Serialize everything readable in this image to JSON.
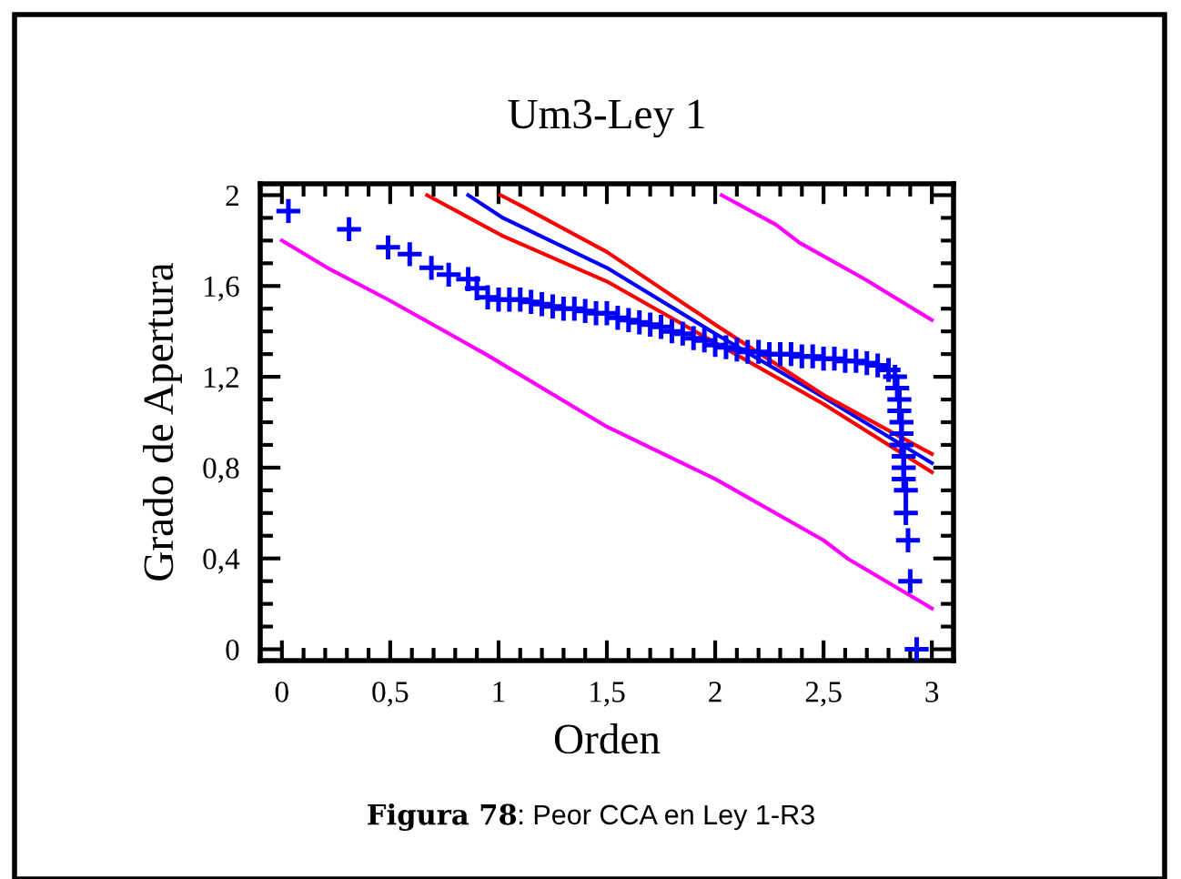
{
  "chart_data": {
    "type": "scatter",
    "title": "Um3-Ley 1",
    "xlabel": "Orden",
    "ylabel": "Grado de Apertura",
    "annotations": [
      "Figura 78: Peor CCA en Ley 1-R3"
    ],
    "xlim": [
      -0.1,
      3.1
    ],
    "ylim": [
      -0.05,
      2.05
    ],
    "xticks": [
      0,
      {
        "value": 0.5,
        "label": "0,5"
      },
      1,
      {
        "value": 1.5,
        "label": "1,5"
      },
      2,
      {
        "value": 2.5,
        "label": "2,5"
      },
      3
    ],
    "yticks": [
      0,
      {
        "value": 0.4,
        "label": "0,4"
      },
      {
        "value": 0.8,
        "label": "0,8"
      },
      {
        "value": 1.2,
        "label": "1,2"
      },
      {
        "value": 1.6,
        "label": "1,6"
      },
      2
    ],
    "grid": false,
    "legend": false,
    "series": [
      {
        "marker": "cross",
        "color": "#0000ff",
        "x": [
          0.03,
          0.31,
          0.49,
          0.59,
          0.69,
          0.77,
          0.86,
          0.9,
          0.95,
          1.0,
          1.05,
          1.1,
          1.15,
          1.2,
          1.25,
          1.3,
          1.35,
          1.4,
          1.45,
          1.5,
          1.55,
          1.6,
          1.65,
          1.7,
          1.75,
          1.8,
          1.85,
          1.9,
          1.95,
          2.0,
          2.05,
          2.1,
          2.15,
          2.2,
          2.25,
          2.3,
          2.35,
          2.4,
          2.45,
          2.5,
          2.55,
          2.6,
          2.65,
          2.7,
          2.75,
          2.8,
          2.83,
          2.84,
          2.85,
          2.85,
          2.86,
          2.86,
          2.86,
          2.87,
          2.87,
          2.87,
          2.88,
          2.88,
          2.89,
          2.9,
          2.93
        ],
        "values": [
          1.93,
          1.85,
          1.77,
          1.74,
          1.68,
          1.65,
          1.63,
          1.59,
          1.55,
          1.54,
          1.54,
          1.54,
          1.53,
          1.52,
          1.51,
          1.5,
          1.5,
          1.49,
          1.48,
          1.48,
          1.46,
          1.45,
          1.44,
          1.43,
          1.42,
          1.4,
          1.39,
          1.37,
          1.36,
          1.34,
          1.33,
          1.32,
          1.31,
          1.31,
          1.3,
          1.3,
          1.3,
          1.29,
          1.29,
          1.28,
          1.28,
          1.27,
          1.27,
          1.26,
          1.25,
          1.23,
          1.2,
          1.15,
          1.1,
          1.05,
          1.0,
          0.95,
          0.9,
          0.85,
          0.8,
          0.75,
          0.7,
          0.6,
          0.48,
          0.3,
          0.0
        ]
      },
      {
        "type": "line",
        "color": "#0000ff",
        "x": [
          0.86,
          1.02,
          1.5,
          2.0,
          2.5,
          3.0
        ],
        "values": [
          2.0,
          1.9,
          1.68,
          1.39,
          1.11,
          0.82
        ]
      },
      {
        "type": "line",
        "color": "#ff0000",
        "x": [
          1.01,
          1.11,
          1.5,
          2.0,
          2.5,
          3.0
        ],
        "values": [
          2.0,
          1.95,
          1.75,
          1.43,
          1.12,
          0.86
        ]
      },
      {
        "type": "line",
        "color": "#ff0000",
        "x": [
          0.67,
          1.02,
          1.5,
          2.0,
          2.5,
          3.0
        ],
        "values": [
          2.0,
          1.82,
          1.62,
          1.35,
          1.08,
          0.78
        ]
      },
      {
        "type": "line",
        "color": "#ff00ff",
        "x": [
          0.0,
          0.21,
          0.49,
          0.94,
          1.5,
          2.0,
          2.5,
          2.61,
          3.0
        ],
        "values": [
          1.8,
          1.68,
          1.54,
          1.3,
          0.98,
          0.75,
          0.48,
          0.4,
          0.18
        ]
      },
      {
        "type": "line",
        "color": "#ff00ff",
        "x": [
          2.03,
          2.28,
          2.39,
          2.69,
          3.0
        ],
        "values": [
          2.0,
          1.87,
          1.79,
          1.63,
          1.45
        ]
      }
    ]
  }
}
